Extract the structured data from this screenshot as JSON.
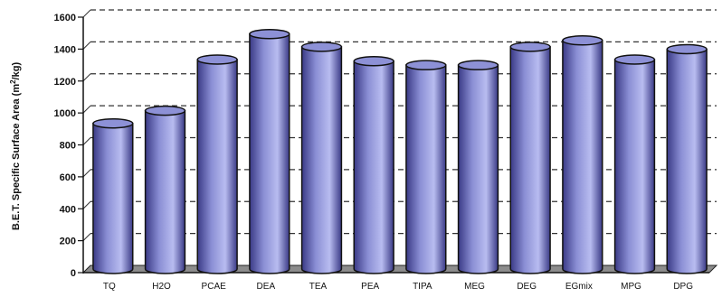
{
  "chart_data": {
    "type": "bar",
    "style": "3d-cylinder",
    "categories": [
      "TQ",
      "H2O",
      "PCAE",
      "DEA",
      "TEA",
      "PEA",
      "TIPA",
      "MEG",
      "DEG",
      "EGmix",
      "MPG",
      "DPG"
    ],
    "values": [
      940,
      1020,
      1340,
      1500,
      1420,
      1330,
      1305,
      1305,
      1420,
      1460,
      1340,
      1405
    ],
    "ylabel_main": "B.E.T. Specific Surface Area (m",
    "ylabel_sup": "2",
    "ylabel_end": "/kg)",
    "ylim": [
      0,
      1600
    ],
    "yticks": [
      0,
      200,
      400,
      600,
      800,
      1000,
      1200,
      1400,
      1600
    ],
    "grid": true,
    "colors": {
      "bar_side_dark": "#3a3a86",
      "bar_side_mid": "#8a8ed4",
      "bar_side_light": "#b8bcf0",
      "bar_top": "#8d91d6",
      "floor": "#8c8c8c",
      "grid": "#333333"
    }
  }
}
